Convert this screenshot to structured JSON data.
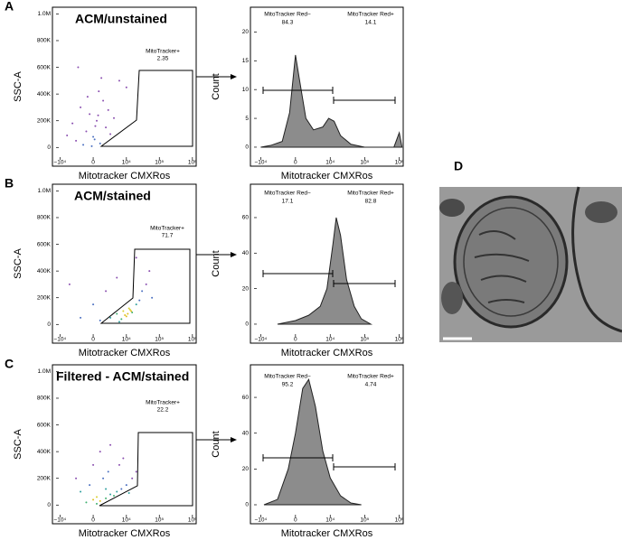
{
  "chart_data": [
    {
      "type": "scatter",
      "panel": "A",
      "title": "ACM/unstained",
      "xlabel": "Mitotracker CMXRos",
      "ylabel": "SSC-A",
      "xscale": "biex",
      "xlim": [
        -17000,
        1300000
      ],
      "ylim": [
        -140000,
        1050000
      ],
      "xticks": [
        {
          "value": -10000,
          "label": "−10⁴"
        },
        0,
        {
          "value": 10000,
          "label": "10⁴"
        },
        {
          "value": 100000,
          "label": "10⁵"
        },
        {
          "value": 1000000,
          "label": "10⁶"
        }
      ],
      "yticks": [
        0,
        {
          "value": 200000,
          "label": "200K"
        },
        {
          "value": 400000,
          "label": "400K"
        },
        {
          "value": 600000,
          "label": "600K"
        },
        {
          "value": 800000,
          "label": "800K"
        },
        {
          "value": 1000000,
          "label": "1.0M"
        }
      ],
      "x": [
        -3000,
        -1000,
        0,
        500,
        1000,
        -2000,
        2000,
        -500,
        1500,
        3000,
        -4000,
        800,
        -1500,
        200,
        2500,
        -800,
        4000,
        6000,
        -6000,
        10000,
        1200,
        -2500,
        300,
        700,
        -200
      ],
      "y": [
        50000,
        120000,
        80000,
        200000,
        30000,
        300000,
        150000,
        250000,
        350000,
        100000,
        180000,
        420000,
        20000,
        60000,
        280000,
        380000,
        220000,
        500000,
        90000,
        450000,
        520000,
        600000,
        160000,
        240000,
        10000
      ],
      "point_colors": [
        "#8a4fb0",
        "#8a4fb0",
        "#4a6fc0",
        "#8a4fb0",
        "#4a6fc0",
        "#8a4fb0",
        "#8a4fb0",
        "#8a4fb0",
        "#8a4fb0",
        "#8a4fb0",
        "#8a4fb0",
        "#8a4fb0",
        "#4a6fc0",
        "#4a6fc0",
        "#8a4fb0",
        "#8a4fb0",
        "#8a4fb0",
        "#8a4fb0",
        "#8a4fb0",
        "#8a4fb0",
        "#8a4fb0",
        "#8a4fb0",
        "#8a4fb0",
        "#8a4fb0",
        "#4a6fc0"
      ],
      "gate": {
        "name": "MitoTracker+",
        "value": 2.35
      }
    },
    {
      "type": "area",
      "xlabel": "Mitotracker CMXRos",
      "ylabel": "Count",
      "xscale": "biex",
      "xlim": [
        -20000,
        1300000
      ],
      "ylim": [
        -3.3,
        24.3
      ],
      "xticks": [
        {
          "value": -10000,
          "label": "−10⁴"
        },
        0,
        {
          "value": 10000,
          "label": "10⁴"
        },
        {
          "value": 100000,
          "label": "10⁵"
        },
        {
          "value": 1000000,
          "label": "10⁶"
        }
      ],
      "yticks": [
        0,
        5,
        10,
        15,
        20
      ],
      "color": "#8c8c8c",
      "x": [
        -10000,
        -5000,
        -2000,
        -800,
        0,
        500,
        1500,
        3000,
        6000,
        9000,
        13000,
        20000,
        40000,
        100000,
        700000,
        1000000,
        1200000
      ],
      "y": [
        0,
        0.3,
        1,
        6,
        16,
        12,
        5,
        3,
        3.5,
        5,
        4.5,
        2,
        0.5,
        0,
        0,
        2.5,
        0
      ],
      "gates": [
        {
          "name": "MitoTracker Red−",
          "value": 84.3
        },
        {
          "name": "MitoTracker Red+",
          "value": 14.1
        }
      ]
    },
    {
      "type": "scatter",
      "panel": "B",
      "title": "ACM/stained",
      "xlabel": "Mitotracker CMXRos",
      "ylabel": "SSC-A",
      "xscale": "biex",
      "xlim": [
        -17000,
        1300000
      ],
      "ylim": [
        -140000,
        1050000
      ],
      "xticks": [
        {
          "value": -10000,
          "label": "−10⁴"
        },
        0,
        {
          "value": 10000,
          "label": "10⁴"
        },
        {
          "value": 100000,
          "label": "10⁵"
        },
        {
          "value": 1000000,
          "label": "10⁶"
        }
      ],
      "yticks": [
        0,
        {
          "value": 200000,
          "label": "200K"
        },
        {
          "value": 400000,
          "label": "400K"
        },
        {
          "value": 600000,
          "label": "600K"
        },
        {
          "value": 800000,
          "label": "800K"
        },
        {
          "value": 1000000,
          "label": "1.0M"
        }
      ],
      "x": [
        1000,
        3000,
        5000,
        8000,
        10000,
        12000,
        15000,
        20000,
        25000,
        30000,
        40000,
        7000,
        9000,
        11000,
        13000,
        -2000,
        0,
        2000,
        5000,
        50000,
        20000,
        -5000,
        60000,
        6000,
        14000
      ],
      "y": [
        30000,
        50000,
        80000,
        100000,
        60000,
        120000,
        90000,
        150000,
        180000,
        250000,
        300000,
        40000,
        70000,
        80000,
        110000,
        50000,
        150000,
        250000,
        350000,
        400000,
        500000,
        300000,
        200000,
        20000,
        100000
      ],
      "point_colors": [
        "#4a6fc0",
        "#30a0a0",
        "#40b070",
        "#d8d030",
        "#e0c020",
        "#d8d030",
        "#40b070",
        "#30a0a0",
        "#4a6fc0",
        "#4a6fc0",
        "#8a4fb0",
        "#40b070",
        "#e0c020",
        "#e0c020",
        "#d8d030",
        "#4a6fc0",
        "#4a6fc0",
        "#8a4fb0",
        "#8a4fb0",
        "#8a4fb0",
        "#8a4fb0",
        "#8a4fb0",
        "#4a6fc0",
        "#30a0a0",
        "#e0c020"
      ],
      "gate": {
        "name": "MitoTracker+",
        "value": 71.7
      }
    },
    {
      "type": "area",
      "xlabel": "Mitotracker CMXRos",
      "ylabel": "Count",
      "xscale": "biex",
      "xlim": [
        -20000,
        1300000
      ],
      "ylim": [
        -10.7,
        78.8
      ],
      "xticks": [
        {
          "value": -10000,
          "label": "−10⁴"
        },
        0,
        {
          "value": 10000,
          "label": "10⁴"
        },
        {
          "value": 100000,
          "label": "10⁵"
        },
        {
          "value": 1000000,
          "label": "10⁶"
        }
      ],
      "yticks": [
        0,
        20,
        40,
        60
      ],
      "color": "#8c8c8c",
      "x": [
        -3000,
        0,
        2000,
        5000,
        8000,
        12000,
        15000,
        20000,
        30000,
        50000,
        80000,
        150000
      ],
      "y": [
        0,
        2,
        5,
        10,
        20,
        45,
        60,
        50,
        25,
        10,
        3,
        0
      ],
      "gates": [
        {
          "name": "MitoTracker Red−",
          "value": 17.1
        },
        {
          "name": "MitoTracker Red+",
          "value": 82.8
        }
      ]
    },
    {
      "type": "scatter",
      "panel": "C",
      "title": "Filtered - ACM/stained",
      "xlabel": "Mitotracker CMXRos",
      "ylabel": "SSC-A",
      "xscale": "biex",
      "xlim": [
        -17000,
        1300000
      ],
      "ylim": [
        -140000,
        1050000
      ],
      "xticks": [
        {
          "value": -10000,
          "label": "−10⁴"
        },
        0,
        {
          "value": 10000,
          "label": "10⁴"
        },
        {
          "value": 100000,
          "label": "10⁵"
        },
        {
          "value": 1000000,
          "label": "10⁶"
        }
      ],
      "yticks": [
        0,
        {
          "value": 200000,
          "label": "200K"
        },
        {
          "value": 400000,
          "label": "400K"
        },
        {
          "value": 600000,
          "label": "600K"
        },
        {
          "value": 800000,
          "label": "800K"
        },
        {
          "value": 1000000,
          "label": "1.0M"
        }
      ],
      "x": [
        -1000,
        0,
        500,
        1000,
        2000,
        3000,
        4000,
        5000,
        7000,
        10000,
        15000,
        -2000,
        -500,
        1500,
        2500,
        6000,
        8000,
        -3000,
        0,
        1000,
        3000,
        20000,
        500,
        2000,
        12000
      ],
      "y": [
        20000,
        40000,
        60000,
        30000,
        50000,
        80000,
        70000,
        100000,
        120000,
        150000,
        200000,
        100000,
        150000,
        200000,
        250000,
        300000,
        350000,
        200000,
        300000,
        400000,
        450000,
        250000,
        10000,
        120000,
        90000
      ],
      "point_colors": [
        "#40b070",
        "#e0c020",
        "#d8d030",
        "#e0c020",
        "#40b070",
        "#30a0a0",
        "#40b070",
        "#30a0a0",
        "#4a6fc0",
        "#4a6fc0",
        "#8a4fb0",
        "#30a0a0",
        "#4a6fc0",
        "#4a6fc0",
        "#4a6fc0",
        "#8a4fb0",
        "#8a4fb0",
        "#8a4fb0",
        "#8a4fb0",
        "#8a4fb0",
        "#8a4fb0",
        "#8a4fb0",
        "#40b070",
        "#30a0a0",
        "#30a0a0"
      ],
      "gate": {
        "name": "MitoTracker+",
        "value": 22.2
      }
    },
    {
      "type": "area",
      "xlabel": "Mitotracker CMXRos",
      "ylabel": "Count",
      "xscale": "biex",
      "xlim": [
        -20000,
        1300000
      ],
      "ylim": [
        -10.6,
        78.2
      ],
      "xticks": [
        {
          "value": -10000,
          "label": "−10⁴"
        },
        0,
        {
          "value": 10000,
          "label": "10⁴"
        },
        {
          "value": 100000,
          "label": "10⁵"
        },
        {
          "value": 1000000,
          "label": "10⁶"
        }
      ],
      "yticks": [
        0,
        20,
        40,
        60
      ],
      "color": "#8c8c8c",
      "x": [
        -8000,
        -3000,
        -1000,
        0,
        1000,
        2000,
        3500,
        6000,
        10000,
        20000,
        40000,
        80000
      ],
      "y": [
        0,
        3,
        20,
        40,
        65,
        70,
        55,
        30,
        15,
        5,
        1,
        0
      ],
      "gates": [
        {
          "name": "MitoTracker Red−",
          "value": 95.2
        },
        {
          "name": "MitoTracker Red+",
          "value": 4.74
        }
      ]
    }
  ],
  "micrograph": {
    "label": "D"
  }
}
